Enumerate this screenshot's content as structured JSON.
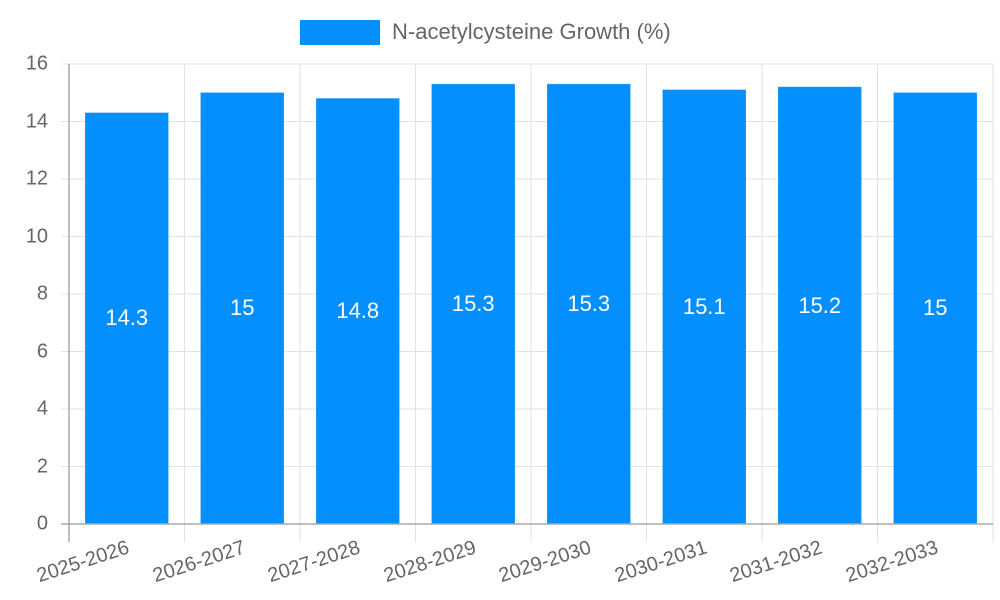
{
  "chart_data": {
    "type": "bar",
    "title": "",
    "xlabel": "",
    "ylabel": "",
    "ylim": [
      0,
      16
    ],
    "yticks": [
      0,
      2,
      4,
      6,
      8,
      10,
      12,
      14,
      16
    ],
    "grid": true,
    "legend_position": "top",
    "categories": [
      "2025-2026",
      "2026-2027",
      "2027-2028",
      "2028-2029",
      "2029-2030",
      "2030-2031",
      "2031-2032",
      "2032-2033"
    ],
    "series": [
      {
        "name": "N-acetylcysteine Growth (%)",
        "color": "#038ffd",
        "values": [
          14.3,
          15,
          14.8,
          15.3,
          15.3,
          15.1,
          15.2,
          15
        ],
        "data_labels": [
          "14.3",
          "15",
          "14.8",
          "15.3",
          "15.3",
          "15.1",
          "15.2",
          "15"
        ]
      }
    ]
  },
  "legend": {
    "label": "N-acetylcysteine Growth (%)"
  }
}
